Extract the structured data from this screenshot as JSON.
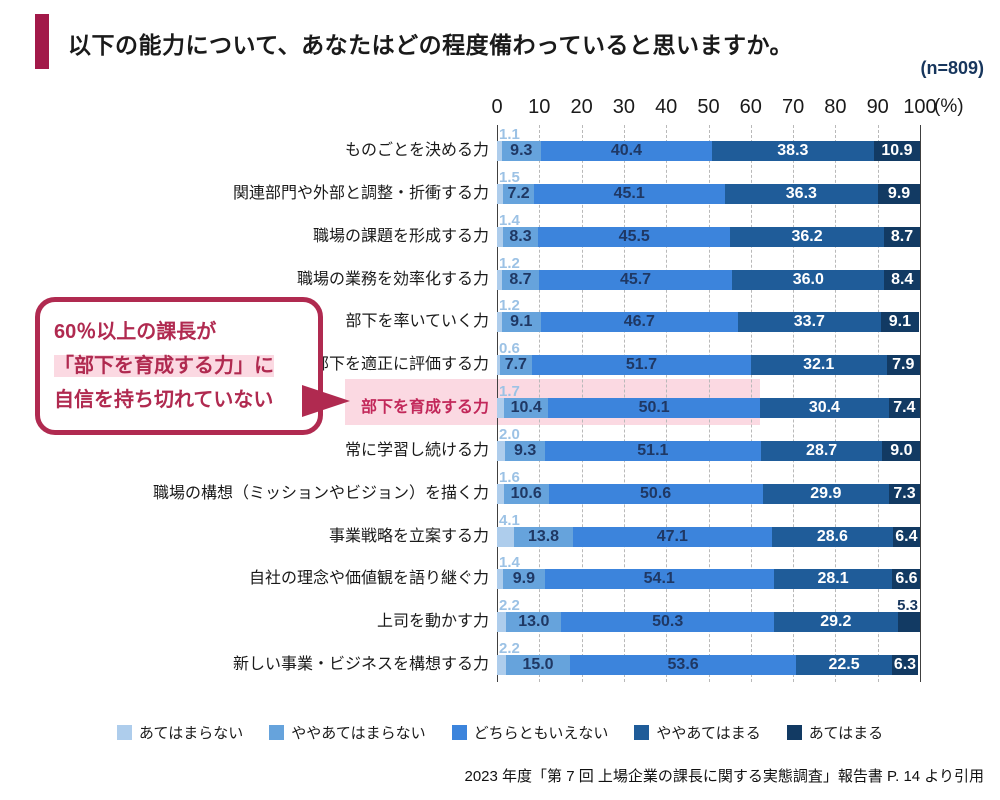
{
  "header": {
    "title": "以下の能力について、あなたはどの程度備わっていると思いますか。",
    "sample_size": "(n=809)"
  },
  "chart_data": {
    "type": "bar",
    "orientation": "horizontal-stacked",
    "title": "以下の能力について、あなたはどの程度備わっていると思いますか。",
    "unit": "%",
    "axis": {
      "range": [
        0,
        100
      ],
      "ticks": [
        0,
        10,
        20,
        30,
        40,
        50,
        60,
        70,
        80,
        90,
        100
      ],
      "unit_label": "(%)"
    },
    "grid": "dashed-vertical-every-10",
    "legend_position": "bottom",
    "legend": [
      "あてはまらない",
      "ややあてはまらない",
      "どちらともいえない",
      "ややあてはまる",
      "あてはまる"
    ],
    "categories": [
      "ものごとを決める力",
      "関連部門や外部と調整・折衝する力",
      "職場の課題を形成する力",
      "職場の業務を効率化する力",
      "部下を率いていく力",
      "部下を適正に評価する力",
      "部下を育成する力",
      "常に学習し続ける力",
      "職場の構想（ミッションやビジョン）を描く力",
      "事業戦略を立案する力",
      "自社の理念や価値観を語り継ぐ力",
      "上司を動かす力",
      "新しい事業・ビジネスを構想する力"
    ],
    "series": [
      {
        "name": "あてはまらない",
        "values": [
          1.1,
          1.5,
          1.4,
          1.2,
          1.2,
          0.6,
          1.7,
          2.0,
          1.6,
          4.1,
          1.4,
          2.2,
          2.2
        ]
      },
      {
        "name": "ややあてはまらない",
        "values": [
          9.3,
          7.2,
          8.3,
          8.7,
          9.1,
          7.7,
          10.4,
          9.3,
          10.6,
          13.8,
          9.9,
          13.0,
          15.0
        ]
      },
      {
        "name": "どちらともいえない",
        "values": [
          40.4,
          45.1,
          45.5,
          45.7,
          46.7,
          51.7,
          50.1,
          51.1,
          50.6,
          47.1,
          54.1,
          50.3,
          53.6
        ]
      },
      {
        "name": "ややあてはまる",
        "values": [
          38.3,
          36.3,
          36.2,
          36.0,
          33.7,
          32.1,
          30.4,
          28.7,
          29.9,
          28.6,
          28.1,
          29.2,
          22.5
        ]
      },
      {
        "name": "あてはまる",
        "values": [
          10.9,
          9.9,
          8.7,
          8.4,
          9.1,
          7.9,
          7.4,
          9.0,
          7.3,
          6.4,
          6.6,
          5.3,
          6.3
        ]
      }
    ],
    "colors": {
      "series": [
        "#AECDEC",
        "#66A3DC",
        "#3C84DC",
        "#1F5C99",
        "#123A63"
      ],
      "value_text_dark": "#1F3864",
      "value_text_light": "#ffffff",
      "outside_value_text": "#9CC2E5",
      "outside_value_text_right": "#17365D"
    },
    "outside_labels": {
      "first_series_above_bar": true,
      "last_series_above_bar_rows": [
        11
      ]
    },
    "highlight": {
      "row_index": 6,
      "band_color": "#FBD9E2",
      "covers_first_series_count": 3,
      "label_color": "#C2285A"
    }
  },
  "annotation": {
    "lines": [
      "60％以上の課長が",
      "「部下を育成する力」に",
      "自信を持ち切れていない"
    ],
    "highlighted_line_index": 1,
    "arrow": "points-right-to-highlighted-row"
  },
  "colors": {
    "accent": "#A21949",
    "callout_border": "#B02A50",
    "callout_text": "#B02A50",
    "highlight_pink": "#FBD9E2",
    "sample_size_text": "#17365D"
  },
  "footer": {
    "source": "2023 年度「第 7 回 上場企業の課長に関する実態調査」報告書 P. 14 より引用"
  }
}
